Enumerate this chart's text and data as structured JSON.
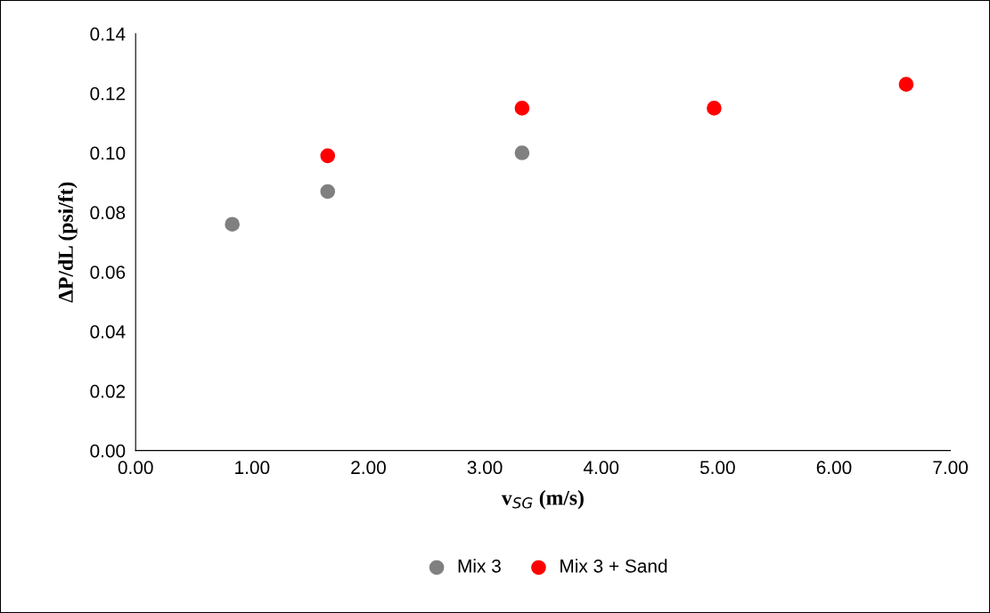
{
  "chart_data": {
    "type": "scatter",
    "xlabel": "v$_{SG}$ (m/s)",
    "ylabel": "ΔP/dL (psi/ft)",
    "series": [
      {
        "name": "Mix 3",
        "color": "#808080",
        "x": [
          0.83,
          1.65,
          3.32
        ],
        "values": [
          0.076,
          0.087,
          0.1
        ]
      },
      {
        "name": "Mix 3 + Sand",
        "color": "#ff0000",
        "x": [
          1.65,
          3.32,
          4.97,
          6.62
        ],
        "values": [
          0.099,
          0.115,
          0.115,
          0.123
        ]
      }
    ],
    "xlim": [
      0,
      7
    ],
    "ylim": [
      0,
      0.14
    ],
    "xticks": [
      {
        "value": 0,
        "label": "0.00"
      },
      {
        "value": 1,
        "label": "1.00"
      },
      {
        "value": 2,
        "label": "2.00"
      },
      {
        "value": 3,
        "label": "3.00"
      },
      {
        "value": 4,
        "label": "4.00"
      },
      {
        "value": 5,
        "label": "5.00"
      },
      {
        "value": 6,
        "label": "6.00"
      },
      {
        "value": 7,
        "label": "7.00"
      }
    ],
    "yticks": [
      {
        "value": 0,
        "label": "0.00"
      },
      {
        "value": 0.02,
        "label": "0.02"
      },
      {
        "value": 0.04,
        "label": "0.04"
      },
      {
        "value": 0.06,
        "label": "0.06"
      },
      {
        "value": 0.08,
        "label": "0.08"
      },
      {
        "value": 0.1,
        "label": "0.10"
      },
      {
        "value": 0.12,
        "label": "0.12"
      },
      {
        "value": 0.14,
        "label": "0.14"
      }
    ],
    "grid": false,
    "legend": "bottom",
    "marker": "circle"
  }
}
